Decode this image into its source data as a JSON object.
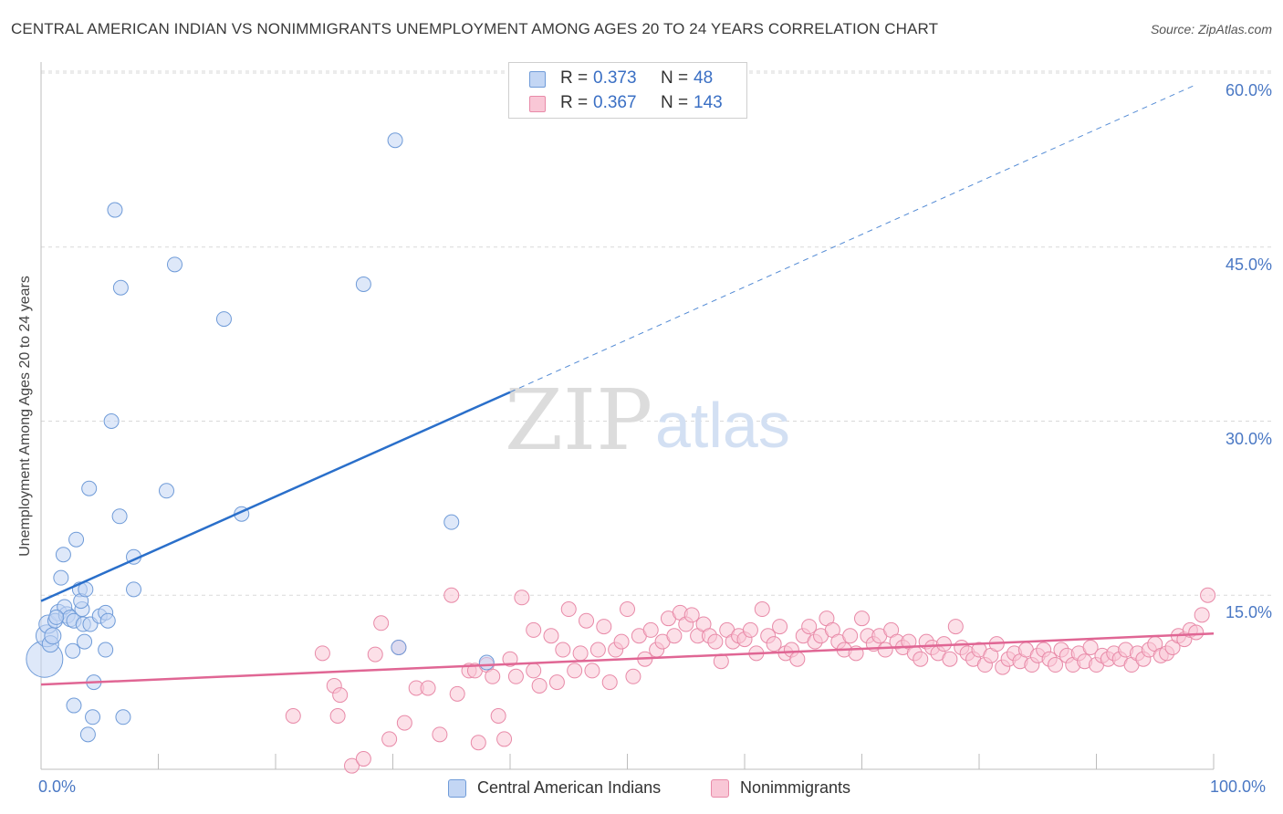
{
  "header": {
    "title": "CENTRAL AMERICAN INDIAN VS NONIMMIGRANTS UNEMPLOYMENT AMONG AGES 20 TO 24 YEARS CORRELATION CHART",
    "source": "Source: ZipAtlas.com"
  },
  "watermark": {
    "zip": "ZIP",
    "atlas": "atlas"
  },
  "colors": {
    "blue_fill": "#c3d6f4",
    "blue_stroke": "#6f9bd8",
    "blue_line": "#2a6fca",
    "pink_fill": "#f9c7d6",
    "pink_stroke": "#e88aa8",
    "pink_line": "#e06694",
    "tick_label": "#4a78c4",
    "grid": "#d9d9d9"
  },
  "legend": {
    "rows": [
      {
        "r_label": "R =",
        "r_value": "0.373",
        "n_label": "N =",
        "n_value": "48"
      },
      {
        "r_label": "R =",
        "r_value": "0.367",
        "n_label": "N =",
        "n_value": "143"
      }
    ],
    "series": [
      "Central American Indians",
      "Nonimmigrants"
    ]
  },
  "chart_data": {
    "type": "scatter",
    "title": "CENTRAL AMERICAN INDIAN VS NONIMMIGRANTS UNEMPLOYMENT AMONG AGES 20 TO 24 YEARS CORRELATION CHART",
    "xlabel": "",
    "ylabel": "Unemployment Among Ages 20 to 24 years",
    "xlim": [
      0,
      100
    ],
    "ylim": [
      0,
      60
    ],
    "x_tick_labels": [
      "0.0%",
      "100.0%"
    ],
    "y_tick_labels": [
      "15.0%",
      "30.0%",
      "45.0%",
      "60.0%"
    ],
    "y_tick_values": [
      15,
      30,
      45,
      60
    ],
    "grid": true,
    "legend_placement": "bottom-center",
    "series": [
      {
        "name": "Central American Indians",
        "r": 0.373,
        "n": 48,
        "trend": {
          "x": [
            0,
            40
          ],
          "y": [
            14.5,
            32.5
          ]
        },
        "trend_extended": {
          "x": [
            40,
            98.5
          ],
          "y": [
            32.5,
            59.0
          ]
        },
        "points": [
          [
            0.3,
            9.5,
            20
          ],
          [
            0.5,
            11.5,
            12
          ],
          [
            0.6,
            12.5,
            10
          ],
          [
            0.8,
            10.8,
            9
          ],
          [
            1.0,
            11.5,
            9
          ],
          [
            1.5,
            13.5,
            9
          ],
          [
            1.2,
            12.8,
            8
          ],
          [
            1.7,
            16.5,
            8
          ],
          [
            2.2,
            13.3,
            9
          ],
          [
            2.0,
            14.0,
            8
          ],
          [
            1.9,
            18.5,
            8
          ],
          [
            2.5,
            13.0,
            9
          ],
          [
            2.7,
            10.2,
            8
          ],
          [
            2.8,
            12.8,
            8
          ],
          [
            3.0,
            19.8,
            8
          ],
          [
            3.3,
            15.5,
            8
          ],
          [
            3.5,
            13.8,
            8
          ],
          [
            3.4,
            14.5,
            8
          ],
          [
            3.6,
            12.5,
            8
          ],
          [
            3.8,
            15.5,
            8
          ],
          [
            3.7,
            11.0,
            8
          ],
          [
            4.2,
            12.5,
            8
          ],
          [
            4.1,
            24.2,
            8
          ],
          [
            4.5,
            7.5,
            8
          ],
          [
            4.4,
            4.5,
            8
          ],
          [
            2.8,
            5.5,
            8
          ],
          [
            4.0,
            3.0,
            8
          ],
          [
            5.0,
            13.2,
            8
          ],
          [
            5.5,
            13.5,
            8
          ],
          [
            5.7,
            12.8,
            8
          ],
          [
            5.5,
            10.3,
            8
          ],
          [
            6.0,
            30.0,
            8
          ],
          [
            6.3,
            48.2,
            8
          ],
          [
            6.7,
            21.8,
            8
          ],
          [
            7.0,
            4.5,
            8
          ],
          [
            6.8,
            41.5,
            8
          ],
          [
            7.9,
            18.3,
            8
          ],
          [
            7.9,
            15.5,
            8
          ],
          [
            10.7,
            24.0,
            8
          ],
          [
            11.4,
            43.5,
            8
          ],
          [
            15.6,
            38.8,
            8
          ],
          [
            17.1,
            22.0,
            8
          ],
          [
            27.5,
            41.8,
            8
          ],
          [
            30.2,
            54.2,
            8
          ],
          [
            35.0,
            21.3,
            8
          ],
          [
            30.5,
            10.5,
            8
          ],
          [
            38.0,
            9.2,
            8
          ],
          [
            1.3,
            13.1,
            8
          ]
        ]
      },
      {
        "name": "Nonimmigrants",
        "r": 0.367,
        "n": 143,
        "trend": {
          "x": [
            0,
            100
          ],
          "y": [
            7.3,
            11.7
          ]
        },
        "points": [
          [
            21.5,
            4.6
          ],
          [
            24.0,
            10.0
          ],
          [
            25.0,
            7.2
          ],
          [
            25.3,
            4.6
          ],
          [
            25.5,
            6.4
          ],
          [
            26.5,
            0.3
          ],
          [
            27.5,
            0.9
          ],
          [
            28.5,
            9.9
          ],
          [
            29.0,
            12.6
          ],
          [
            29.7,
            2.6
          ],
          [
            30.5,
            10.5
          ],
          [
            31.0,
            4.0
          ],
          [
            32.0,
            7.0
          ],
          [
            33.0,
            7.0
          ],
          [
            34.0,
            3.0
          ],
          [
            35.0,
            15.0
          ],
          [
            35.5,
            6.5
          ],
          [
            36.5,
            8.5
          ],
          [
            37.0,
            8.5
          ],
          [
            37.3,
            2.3
          ],
          [
            38.0,
            9.0
          ],
          [
            39.0,
            4.6
          ],
          [
            38.5,
            8.0
          ],
          [
            39.5,
            2.6
          ],
          [
            40.0,
            9.5
          ],
          [
            40.5,
            8.0
          ],
          [
            41.0,
            14.8
          ],
          [
            42.0,
            8.5
          ],
          [
            42.0,
            12.0
          ],
          [
            42.5,
            7.2
          ],
          [
            43.5,
            11.5
          ],
          [
            44.0,
            7.5
          ],
          [
            44.5,
            10.3
          ],
          [
            45.0,
            13.8
          ],
          [
            45.5,
            8.5
          ],
          [
            46.0,
            10.0
          ],
          [
            46.5,
            12.8
          ],
          [
            47.0,
            8.5
          ],
          [
            47.5,
            10.3
          ],
          [
            48.0,
            12.3
          ],
          [
            48.5,
            7.5
          ],
          [
            49.0,
            10.3
          ],
          [
            49.5,
            11.0
          ],
          [
            50.0,
            13.8
          ],
          [
            50.5,
            8.0
          ],
          [
            51.0,
            11.5
          ],
          [
            51.5,
            9.5
          ],
          [
            52.0,
            12.0
          ],
          [
            52.5,
            10.3
          ],
          [
            53.0,
            11.0
          ],
          [
            53.5,
            13.0
          ],
          [
            54.0,
            11.5
          ],
          [
            54.5,
            13.5
          ],
          [
            55.0,
            12.5
          ],
          [
            55.5,
            13.3
          ],
          [
            56.0,
            11.5
          ],
          [
            56.5,
            12.5
          ],
          [
            57.0,
            11.5
          ],
          [
            57.5,
            11.0
          ],
          [
            58.0,
            9.3
          ],
          [
            58.5,
            12.0
          ],
          [
            59.0,
            11.0
          ],
          [
            59.5,
            11.5
          ],
          [
            60.0,
            11.2
          ],
          [
            60.5,
            12.0
          ],
          [
            61.0,
            10.0
          ],
          [
            61.5,
            13.8
          ],
          [
            62.0,
            11.5
          ],
          [
            62.5,
            10.8
          ],
          [
            63.0,
            12.3
          ],
          [
            63.5,
            10.0
          ],
          [
            64.0,
            10.3
          ],
          [
            64.5,
            9.5
          ],
          [
            65.0,
            11.5
          ],
          [
            65.5,
            12.3
          ],
          [
            66.0,
            11.0
          ],
          [
            66.5,
            11.5
          ],
          [
            67.0,
            13.0
          ],
          [
            67.5,
            12.0
          ],
          [
            68.0,
            11.0
          ],
          [
            68.5,
            10.3
          ],
          [
            69.0,
            11.5
          ],
          [
            69.5,
            10.0
          ],
          [
            70.0,
            13.0
          ],
          [
            70.5,
            11.5
          ],
          [
            71.0,
            10.8
          ],
          [
            71.5,
            11.5
          ],
          [
            72.0,
            10.3
          ],
          [
            72.5,
            12.0
          ],
          [
            73.0,
            11.0
          ],
          [
            73.5,
            10.5
          ],
          [
            74.0,
            11.0
          ],
          [
            74.5,
            10.0
          ],
          [
            75.0,
            9.5
          ],
          [
            75.5,
            11.0
          ],
          [
            76.0,
            10.5
          ],
          [
            76.5,
            10.0
          ],
          [
            77.0,
            10.8
          ],
          [
            77.5,
            9.5
          ],
          [
            78.0,
            12.3
          ],
          [
            78.5,
            10.5
          ],
          [
            79.0,
            10.0
          ],
          [
            79.5,
            9.5
          ],
          [
            80.0,
            10.3
          ],
          [
            80.5,
            9.0
          ],
          [
            81.0,
            9.8
          ],
          [
            81.5,
            10.8
          ],
          [
            82.0,
            8.8
          ],
          [
            82.5,
            9.5
          ],
          [
            83.0,
            10.0
          ],
          [
            83.5,
            9.3
          ],
          [
            84.0,
            10.3
          ],
          [
            84.5,
            9.0
          ],
          [
            85.0,
            9.8
          ],
          [
            85.5,
            10.3
          ],
          [
            86.0,
            9.5
          ],
          [
            86.5,
            9.0
          ],
          [
            87.0,
            10.3
          ],
          [
            87.5,
            9.8
          ],
          [
            88.0,
            9.0
          ],
          [
            88.5,
            10.0
          ],
          [
            89.0,
            9.3
          ],
          [
            89.5,
            10.5
          ],
          [
            90.0,
            9.0
          ],
          [
            90.5,
            9.8
          ],
          [
            91.0,
            9.5
          ],
          [
            91.5,
            10.0
          ],
          [
            92.0,
            9.5
          ],
          [
            92.5,
            10.3
          ],
          [
            93.0,
            9.0
          ],
          [
            93.5,
            10.0
          ],
          [
            94.0,
            9.5
          ],
          [
            94.5,
            10.3
          ],
          [
            95.0,
            10.8
          ],
          [
            95.5,
            9.8
          ],
          [
            96.0,
            10.0
          ],
          [
            96.5,
            10.5
          ],
          [
            97.0,
            11.5
          ],
          [
            97.5,
            11.2
          ],
          [
            98.0,
            12.0
          ],
          [
            98.5,
            11.8
          ],
          [
            99.0,
            13.3
          ],
          [
            99.5,
            15.0
          ]
        ]
      }
    ]
  }
}
